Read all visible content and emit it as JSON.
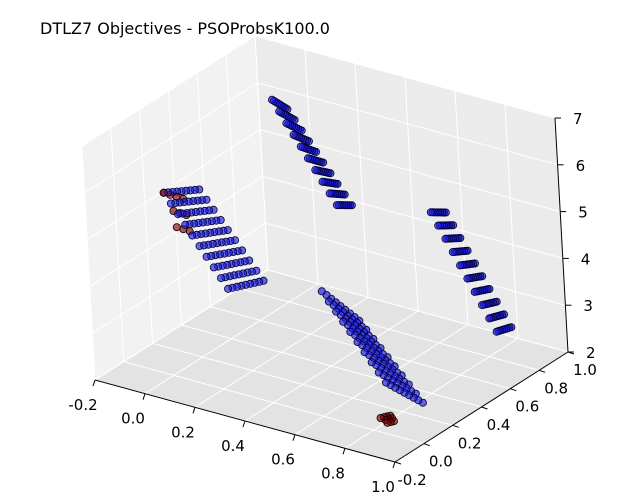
{
  "chart_data": {
    "type": "scatter",
    "projection": "3d",
    "title": "DTLZ7 Objectives - PSOProbsK100.0",
    "xlabel": "",
    "ylabel": "",
    "zlabel": "",
    "xlim": [
      -0.2,
      1.0
    ],
    "ylim": [
      -0.2,
      1.0
    ],
    "zlim": [
      2,
      7
    ],
    "x_ticks": [
      "-0.2",
      "0.0",
      "0.2",
      "0.4",
      "0.6",
      "0.8",
      "1.0"
    ],
    "y_ticks": [
      "-0.2",
      "0.0",
      "0.2",
      "0.4",
      "0.6",
      "0.8",
      "1.0"
    ],
    "z_ticks": [
      "2",
      "3",
      "4",
      "5",
      "6",
      "7"
    ],
    "grid": true,
    "legend": "none",
    "colors": {
      "population_face": "#1a1adf",
      "population_edge": "#000033",
      "selected_face": "#8b0000",
      "selected_edge": "#000000",
      "pane_light": "#f2f2f2",
      "pane_mid": "#ebebeb",
      "pane_dark": "#e3e3e3",
      "grid": "#ffffff"
    },
    "series": [
      {
        "role": "population",
        "clusters": [
          {
            "x": [
              0.0,
              0.24
            ],
            "y": [
              0.0,
              0.24
            ],
            "z_top": [
              5.9,
              4.2
            ],
            "z_bottom": [
              5.5,
              3.9
            ]
          },
          {
            "x": [
              0.0,
              0.24
            ],
            "y": [
              0.76,
              0.86
            ],
            "z_top": [
              6.4,
              4.5
            ],
            "z_bottom": [
              6.0,
              4.3
            ]
          },
          {
            "x": [
              0.62,
              0.86
            ],
            "y": [
              0.0,
              0.24
            ],
            "z_top": [
              4.7,
              3.1
            ],
            "z_bottom": [
              3.6,
              2.2
            ]
          },
          {
            "x": [
              0.62,
              0.86
            ],
            "y": [
              0.76,
              0.86
            ],
            "z_top": [
              4.9,
              2.7
            ],
            "z_bottom": [
              4.7,
              2.6
            ]
          }
        ]
      },
      {
        "role": "selected",
        "clusters": [
          {
            "x": [
              0.0,
              0.05
            ],
            "y": [
              0.0,
              0.1
            ],
            "z": [
              5.0,
              5.9
            ]
          },
          {
            "x": [
              0.83,
              0.86
            ],
            "y": [
              0.0,
              0.05
            ],
            "z": [
              2.2,
              2.3
            ]
          }
        ]
      }
    ]
  }
}
